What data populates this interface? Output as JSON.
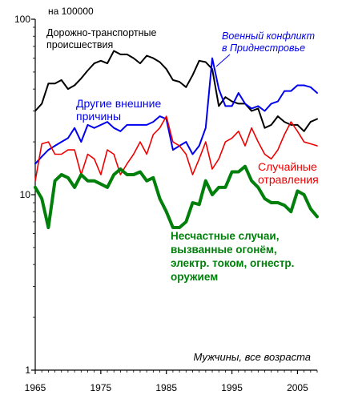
{
  "chart_data": {
    "type": "line",
    "y_scale": "log",
    "ylim": [
      1,
      100
    ],
    "xlim": [
      1965,
      2008
    ],
    "grid": false,
    "ylabel_unit": "на 100000",
    "caption": "Мужчины, все возраста",
    "x_ticks": [
      1965,
      1975,
      1985,
      1995,
      2005
    ],
    "y_ticks": [
      1,
      10,
      100
    ],
    "x": [
      1965,
      1966,
      1967,
      1968,
      1969,
      1970,
      1971,
      1972,
      1973,
      1974,
      1975,
      1976,
      1977,
      1978,
      1979,
      1980,
      1981,
      1982,
      1983,
      1984,
      1985,
      1986,
      1987,
      1988,
      1989,
      1990,
      1991,
      1992,
      1993,
      1994,
      1995,
      1996,
      1997,
      1998,
      1999,
      2000,
      2001,
      2002,
      2003,
      2004,
      2005,
      2006,
      2007,
      2008
    ],
    "series": [
      {
        "name": "Дорожно-транспортные происшествия",
        "color": "#000000",
        "width": 2,
        "values": [
          30,
          33,
          43,
          43,
          45,
          40,
          42,
          46,
          51,
          56,
          58,
          56,
          66,
          63,
          63,
          60,
          56,
          62,
          60,
          57,
          52,
          45,
          44,
          41,
          48,
          58,
          57,
          52,
          32,
          36,
          34,
          33,
          33,
          30,
          31,
          24,
          25,
          28,
          26,
          25,
          25,
          23,
          26,
          27
        ]
      },
      {
        "name": "Другие внешние причины",
        "color": "#0000ee",
        "width": 2,
        "values": [
          15,
          16.5,
          18,
          19,
          20,
          21,
          24,
          20,
          25,
          24,
          25,
          26,
          24,
          23,
          25,
          25,
          25,
          25,
          26,
          28,
          27,
          18,
          19,
          20,
          17,
          19,
          24,
          60,
          40,
          32,
          32,
          38,
          33,
          31,
          32,
          30,
          33,
          34,
          39,
          39,
          42,
          42,
          41,
          38
        ]
      },
      {
        "name": "Случайные отравления",
        "color": "#ee0000",
        "width": 1.6,
        "values": [
          12,
          19.5,
          20,
          17,
          17,
          18,
          18,
          13,
          17,
          16,
          13,
          18,
          17,
          13,
          15,
          17,
          20,
          17,
          22,
          24,
          28,
          20,
          19,
          17,
          13,
          16,
          20,
          14,
          16,
          20,
          21,
          23,
          19,
          24,
          20,
          17,
          16,
          18,
          22,
          26,
          23,
          20,
          19.5,
          19
        ]
      },
      {
        "name": "Несчастные случаи, вызванные огонём, электр. током, огнестр. оружием",
        "color": "#00800b",
        "width": 4,
        "values": [
          11,
          9.5,
          6.5,
          12,
          13,
          12.5,
          11,
          13,
          12,
          12,
          11.5,
          11,
          13,
          14,
          13,
          13,
          13.5,
          12,
          12.5,
          9.5,
          8,
          6.5,
          6.5,
          7,
          9,
          8.8,
          12,
          10,
          11,
          11,
          13.5,
          13.5,
          14.5,
          12,
          11,
          9.5,
          9,
          9,
          8.7,
          8,
          10.5,
          10,
          8.3,
          7.5
        ]
      }
    ],
    "annotations": {
      "road": [
        "Дорожно-транспортные",
        "происшествия"
      ],
      "conflict": [
        "Военный конфликт",
        "в Приднестровье"
      ],
      "other": [
        "Другие внешние",
        "причины"
      ],
      "poison": [
        "Случайные",
        "отравления"
      ],
      "fire": [
        "Несчастные случаи,",
        "вызванные огонём,",
        "электр. током, огнестр.",
        "оружием"
      ]
    },
    "colors": {
      "road": "#000000",
      "conflict": "#0000ee",
      "other": "#0000ee",
      "poison": "#ee0000",
      "fire": "#00800b"
    }
  }
}
